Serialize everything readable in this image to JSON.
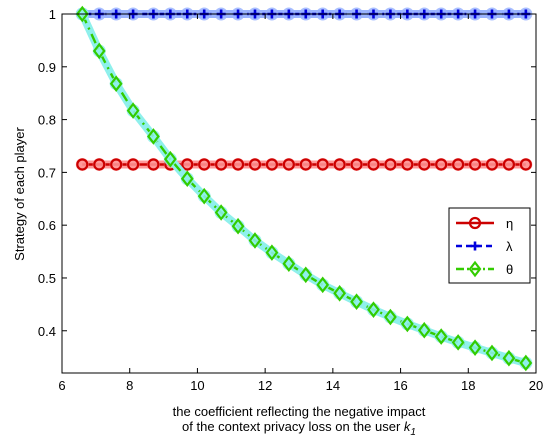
{
  "chart_data": {
    "type": "line",
    "title": "",
    "xlabel_line1": "the coefficient reflecting the negative impact",
    "xlabel_line2_prefix": "of the context privacy loss on the user ",
    "xlabel_symbol": "k",
    "xlabel_subscript": "1",
    "ylabel": "Strategy of each player",
    "xlim": [
      6,
      20
    ],
    "ylim": [
      0.32,
      1.0
    ],
    "xticks": [
      6,
      8,
      10,
      12,
      14,
      16,
      18,
      20
    ],
    "yticks": [
      0.4,
      0.5,
      0.6,
      0.7,
      0.8,
      0.9,
      1
    ],
    "xtick_labels": [
      "6",
      "8",
      "10",
      "12",
      "14",
      "16",
      "18",
      "20"
    ],
    "ytick_labels": [
      "0.4",
      "0.5",
      "0.6",
      "0.7",
      "0.8",
      "0.9",
      "1"
    ],
    "grid": false,
    "legend_position": "right",
    "x": [
      6.6,
      7.1,
      7.6,
      8.1,
      8.7,
      9.2,
      9.7,
      10.2,
      10.7,
      11.2,
      11.7,
      12.2,
      12.7,
      13.2,
      13.7,
      14.2,
      14.7,
      15.2,
      15.7,
      16.2,
      16.7,
      17.2,
      17.7,
      18.2,
      18.7,
      19.2,
      19.7
    ],
    "series": [
      {
        "name": "η",
        "color": "#cc0000",
        "glow": "#ff9a9a",
        "line_style": "solid",
        "marker": "circle",
        "values": [
          0.715,
          0.715,
          0.715,
          0.715,
          0.715,
          0.715,
          0.715,
          0.715,
          0.715,
          0.715,
          0.715,
          0.715,
          0.715,
          0.715,
          0.715,
          0.715,
          0.715,
          0.715,
          0.715,
          0.715,
          0.715,
          0.715,
          0.715,
          0.715,
          0.715,
          0.715,
          0.715
        ]
      },
      {
        "name": "λ",
        "color": "#0000dd",
        "glow": "#9ab4ff",
        "line_style": "dashed",
        "marker": "plus",
        "values": [
          1,
          1,
          1,
          1,
          1,
          1,
          1,
          1,
          1,
          1,
          1,
          1,
          1,
          1,
          1,
          1,
          1,
          1,
          1,
          1,
          1,
          1,
          1,
          1,
          1,
          1,
          1
        ]
      },
      {
        "name": "θ",
        "color": "#33cc00",
        "glow": "#8ff0ec",
        "line_style": "dashdot",
        "marker": "diamond",
        "values": [
          1.0,
          0.93,
          0.868,
          0.817,
          0.768,
          0.725,
          0.688,
          0.655,
          0.624,
          0.598,
          0.571,
          0.548,
          0.527,
          0.506,
          0.487,
          0.471,
          0.455,
          0.44,
          0.426,
          0.413,
          0.401,
          0.389,
          0.378,
          0.368,
          0.358,
          0.348,
          0.339
        ]
      }
    ]
  }
}
